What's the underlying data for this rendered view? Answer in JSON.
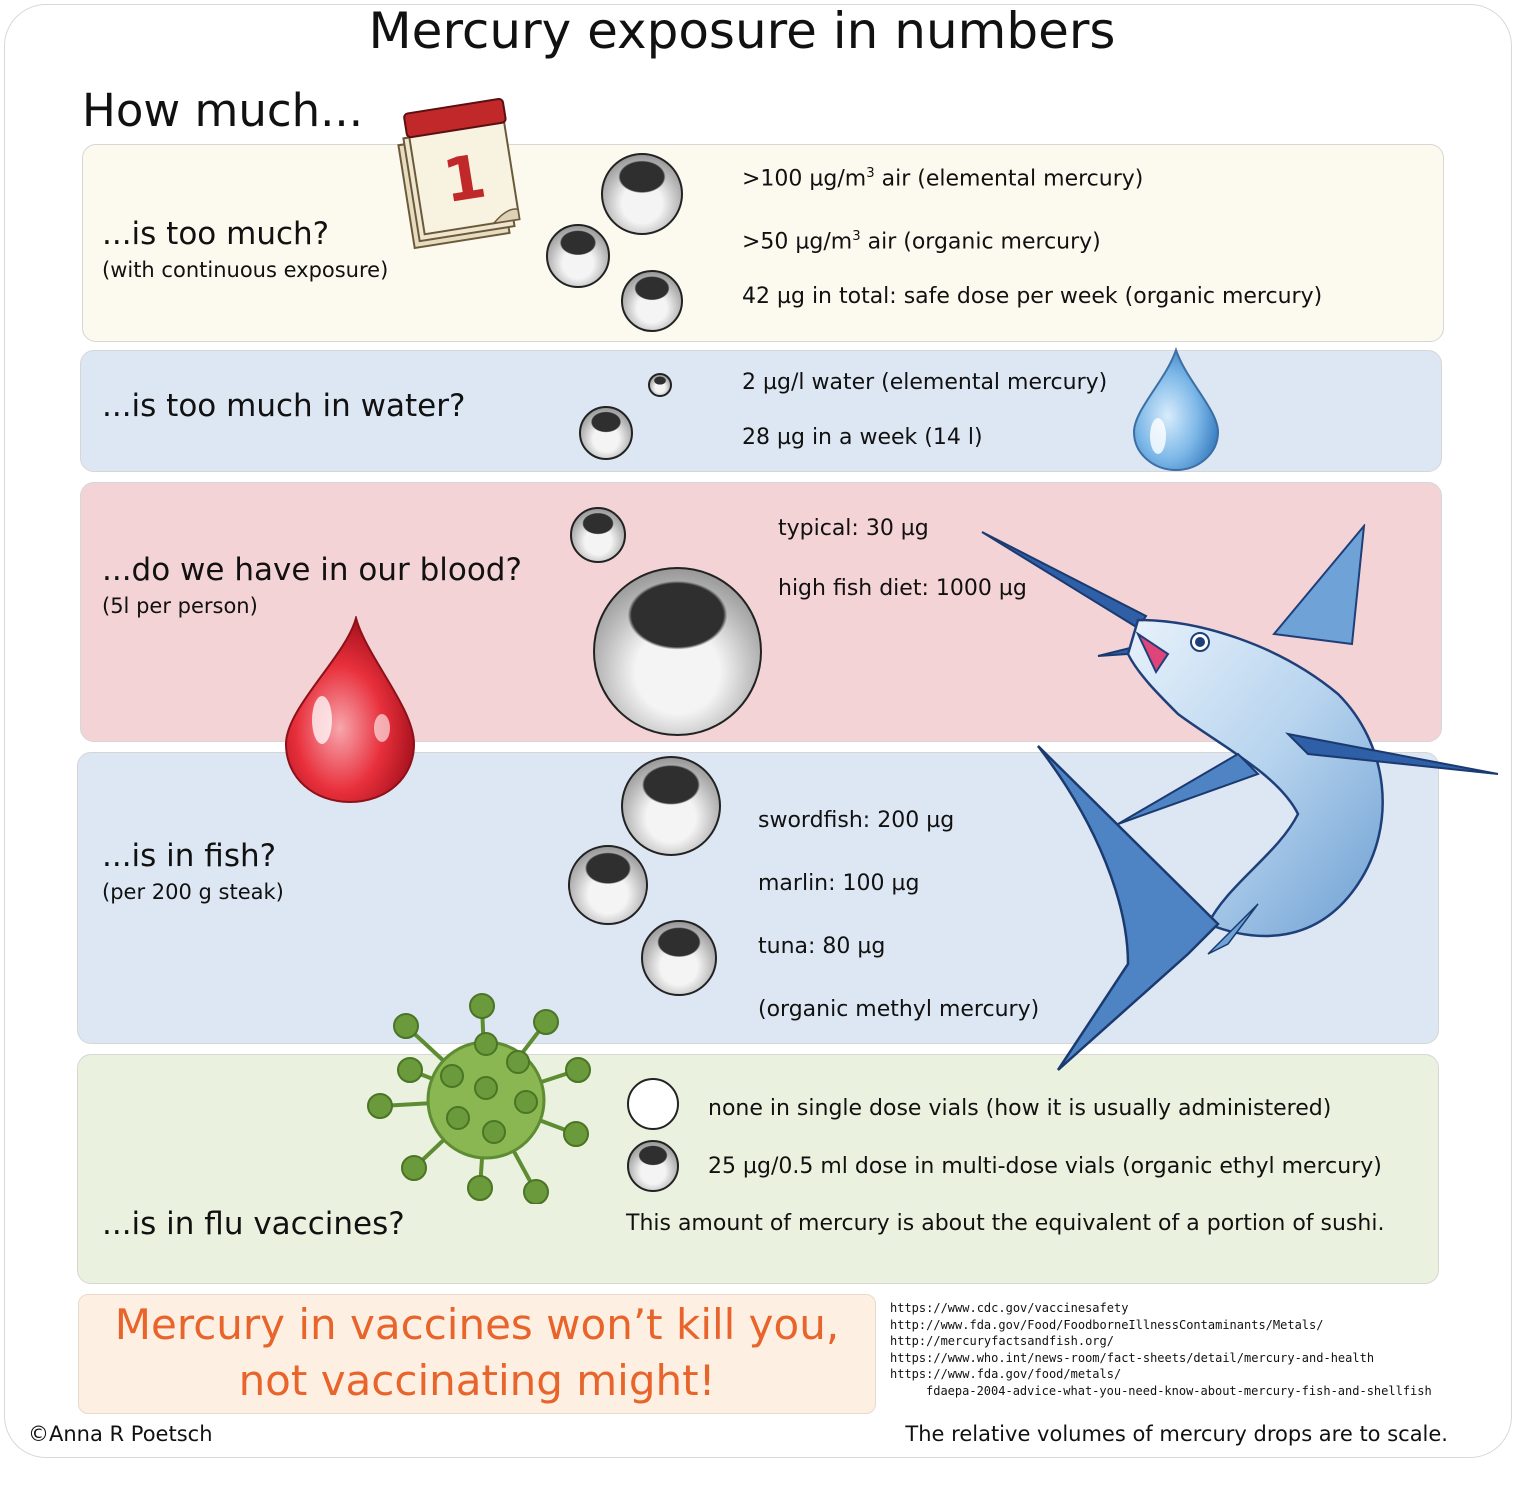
{
  "title": "Mercury exposure in numbers",
  "subtitle": "How much...",
  "rows": [
    {
      "question": "...is too much?",
      "note": "(with continuous exposure)",
      "items": [
        {
          "pre": ">100 µg/m",
          "sup": "3",
          "post": " air (elemental mercury)"
        },
        {
          "pre": ">50 µg/m",
          "sup": "3",
          "post": " air (organic mercury)"
        },
        {
          "text": "42 µg in total: safe dose per week (organic mercury)"
        }
      ],
      "icon": "calendar-icon",
      "calendar_number": "1"
    },
    {
      "question": "...is too much in water?",
      "items": [
        {
          "text": "2 µg/l water (elemental mercury)"
        },
        {
          "text": "28 µg in a week (14 l)"
        }
      ],
      "icon": "water-drop-icon"
    },
    {
      "question": "...do we have in our blood?",
      "note": "(5l per person)",
      "items": [
        {
          "text": "typical: 30 µg"
        },
        {
          "text": "high fish diet: 1000 µg"
        }
      ],
      "icon": "blood-drop-icon"
    },
    {
      "question": "...is in fish?",
      "note": "(per 200 g steak)",
      "items": [
        {
          "text": "swordfish: 200 µg"
        },
        {
          "text": "marlin: 100 µg"
        },
        {
          "text": "tuna: 80 µg"
        },
        {
          "text": "(organic methyl mercury)"
        }
      ],
      "icon": "marlin-fish-icon"
    },
    {
      "question": "...is in flu vaccines?",
      "items": [
        {
          "text": "none in single dose vials (how it is usually administered)"
        },
        {
          "text": "25 µg/0.5 ml dose in multi-dose vials (organic ethyl mercury)"
        },
        {
          "text": "This amount of mercury is about the equivalent of a portion of sushi."
        }
      ],
      "icon": "virus-icon"
    }
  ],
  "motto": [
    "Mercury in vaccines won’t kill you,",
    "not vaccinating might!"
  ],
  "references": [
    "https://www.cdc.gov/vaccinesafety",
    "http://www.fda.gov/Food/FoodborneIllnessContaminants/Metals/",
    "http://mercuryfactsandfish.org/",
    "https://www.who.int/news-room/fact-sheets/detail/mercury-and-health",
    "https://www.fda.gov/food/metals/",
    "fdaepa-2004-advice-what-you-need-know-about-mercury-fish-and-shellfish"
  ],
  "copyright": "©Anna R Poetsch",
  "scale_note": "The relative volumes of mercury drops are to scale.",
  "colors": {
    "panel_air": "#fcf9ef",
    "panel_water": "#dde7f3",
    "panel_blood": "#f3d3d5",
    "panel_fish": "#dde7f3",
    "panel_vaccine": "#eaf2df",
    "motto": "#e8642a"
  }
}
